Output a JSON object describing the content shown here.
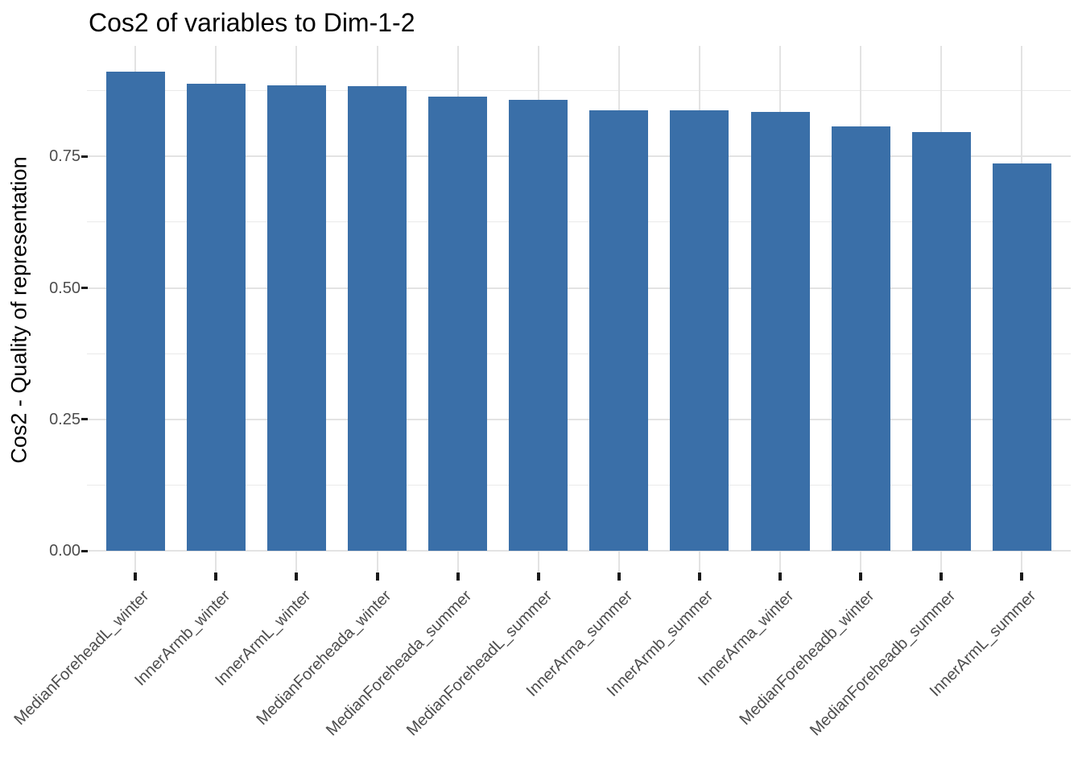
{
  "chart_data": {
    "type": "bar",
    "title": "Cos2 of variables to Dim-1-2",
    "ylabel": "Cos2 - Quality of representation",
    "xlabel": "",
    "categories": [
      "MedianForeheadL_winter",
      "InnerArmb_winter",
      "InnerArmL_winter",
      "MedianForeheada_winter",
      "MedianForeheada_summer",
      "MedianForeheadL_summer",
      "InnerArma_summer",
      "InnerArmb_summer",
      "InnerArma_winter",
      "MedianForeheadb_winter",
      "MedianForeheadb_summer",
      "InnerArmL_summer"
    ],
    "values": [
      0.911,
      0.889,
      0.885,
      0.883,
      0.864,
      0.857,
      0.838,
      0.837,
      0.834,
      0.807,
      0.796,
      0.736
    ],
    "y_tick_values": [
      0,
      0.25,
      0.5,
      0.75
    ],
    "y_tick_labels": [
      "0.00",
      "0.25",
      "0.50",
      "0.75"
    ],
    "y_minor_tick_values": [
      0.125,
      0.375,
      0.625,
      0.875
    ],
    "ylim": [
      0,
      0.96
    ],
    "grid": "on",
    "legend_position": "none",
    "bar_orientation": "vertical",
    "x_label_rotation_deg": 45
  },
  "colors": {
    "bar_fill": "#3A6FA8",
    "grid_major": "#E3E3E3",
    "grid_minor": "#EAEAEA",
    "axis_text": "#4D4D4D",
    "tick_mark": "#1A1A1A",
    "title_text": "#000000",
    "background": "#FFFFFF"
  }
}
